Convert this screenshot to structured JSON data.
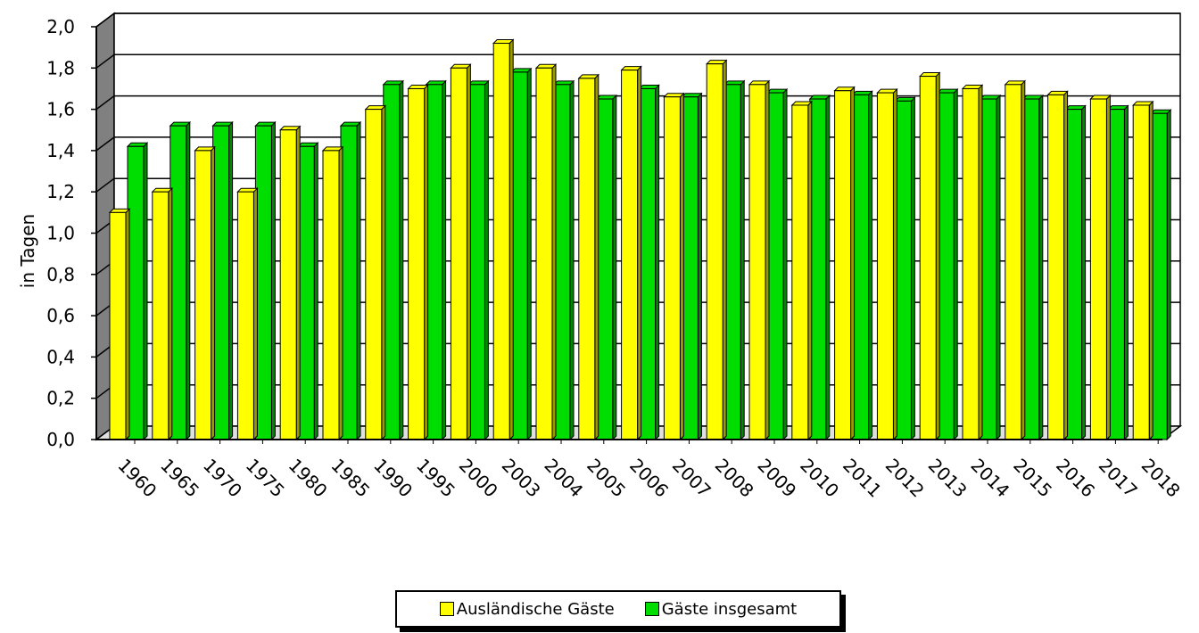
{
  "chart_data": {
    "type": "bar",
    "categories": [
      "1960",
      "1965",
      "1970",
      "1975",
      "1980",
      "1985",
      "1990",
      "1995",
      "2000",
      "2003",
      "2004",
      "2005",
      "2006",
      "2007",
      "2008",
      "2009",
      "2010",
      "2011",
      "2012",
      "2013",
      "2014",
      "2015",
      "2016",
      "2017",
      "2018"
    ],
    "series": [
      {
        "name": "Ausländische Gäste",
        "color": "#ffff00",
        "values": [
          1.1,
          1.2,
          1.4,
          1.2,
          1.5,
          1.4,
          1.6,
          1.7,
          1.8,
          1.92,
          1.8,
          1.75,
          1.79,
          1.66,
          1.82,
          1.72,
          1.62,
          1.69,
          1.68,
          1.76,
          1.7,
          1.72,
          1.67,
          1.65,
          1.62
        ]
      },
      {
        "name": "Gäste insgesamt",
        "color": "#00dd00",
        "values": [
          1.42,
          1.52,
          1.52,
          1.52,
          1.42,
          1.52,
          1.72,
          1.72,
          1.72,
          1.78,
          1.72,
          1.65,
          1.7,
          1.66,
          1.72,
          1.68,
          1.65,
          1.67,
          1.64,
          1.68,
          1.65,
          1.65,
          1.6,
          1.6,
          1.58
        ]
      }
    ],
    "ylabel": "in Tagen",
    "xlabel": "",
    "ylim": [
      0,
      2.0
    ],
    "yticks": [
      "0,0",
      "0,2",
      "0,4",
      "0,6",
      "0,8",
      "1,0",
      "1,2",
      "1,4",
      "1,6",
      "1,8",
      "2,0"
    ],
    "grid": true,
    "legend_position": "bottom-center"
  }
}
